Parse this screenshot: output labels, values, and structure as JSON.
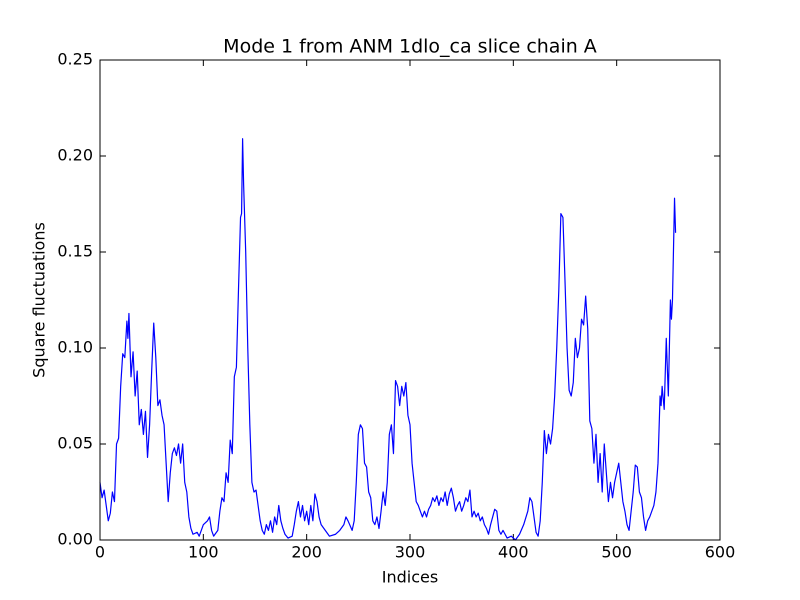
{
  "chart_data": {
    "type": "line",
    "title": "Mode 1 from ANM 1dlo_ca slice chain A",
    "xlabel": "Indices",
    "ylabel": "Square fluctuations",
    "xlim": [
      0,
      600
    ],
    "xticks": [
      0,
      100,
      200,
      300,
      400,
      500,
      600
    ],
    "ylim": [
      0,
      0.25
    ],
    "yticks": [
      {
        "value": 0,
        "label": "0.00"
      },
      {
        "value": 0.05,
        "label": "0.05"
      },
      {
        "value": 0.1,
        "label": "0.10"
      },
      {
        "value": 0.15,
        "label": "0.15"
      },
      {
        "value": 0.2,
        "label": "0.20"
      },
      {
        "value": 0.25,
        "label": "0.25"
      }
    ],
    "grid": false,
    "series": [
      {
        "color": "#0000ff",
        "x": [
          0,
          2,
          4,
          6,
          8,
          10,
          12,
          14,
          16,
          18,
          20,
          22,
          24,
          26,
          27,
          28,
          30,
          32,
          34,
          36,
          38,
          40,
          42,
          44,
          46,
          48,
          50,
          52,
          54,
          56,
          58,
          60,
          62,
          64,
          66,
          68,
          70,
          72,
          74,
          76,
          78,
          80,
          82,
          84,
          86,
          88,
          90,
          94,
          96,
          100,
          104,
          106,
          108,
          110,
          114,
          116,
          118,
          120,
          122,
          124,
          126,
          128,
          130,
          132,
          134,
          136,
          137,
          138,
          139,
          141,
          143,
          145,
          147,
          149,
          151,
          153,
          155,
          157,
          159,
          161,
          163,
          165,
          167,
          169,
          171,
          173,
          175,
          177,
          179,
          182,
          186,
          188,
          190,
          192,
          194,
          196,
          198,
          200,
          202,
          204,
          206,
          208,
          210,
          212,
          214,
          218,
          222,
          228,
          232,
          236,
          238,
          240,
          244,
          246,
          248,
          250,
          252,
          254,
          256,
          258,
          260,
          262,
          264,
          266,
          268,
          270,
          272,
          274,
          276,
          278,
          280,
          282,
          284,
          286,
          288,
          290,
          292,
          294,
          296,
          298,
          300,
          302,
          304,
          306,
          308,
          310,
          312,
          314,
          316,
          318,
          320,
          322,
          324,
          326,
          328,
          330,
          332,
          334,
          336,
          338,
          340,
          342,
          344,
          346,
          348,
          350,
          352,
          354,
          356,
          358,
          360,
          362,
          364,
          366,
          368,
          370,
          372,
          374,
          376,
          378,
          380,
          382,
          384,
          386,
          388,
          390,
          394,
          398,
          402,
          406,
          410,
          414,
          416,
          418,
          420,
          422,
          424,
          426,
          428,
          430,
          432,
          434,
          436,
          438,
          440,
          442,
          444,
          446,
          448,
          450,
          452,
          454,
          456,
          458,
          460,
          462,
          464,
          466,
          468,
          470,
          472,
          474,
          476,
          478,
          480,
          482,
          484,
          486,
          488,
          490,
          492,
          494,
          496,
          498,
          500,
          502,
          504,
          506,
          508,
          510,
          512,
          514,
          516,
          518,
          520,
          522,
          524,
          526,
          528,
          530,
          532,
          534,
          536,
          538,
          540,
          542,
          543,
          544,
          546,
          548,
          550,
          552,
          553,
          554,
          556,
          557
        ],
        "values": [
          0.03,
          0.022,
          0.026,
          0.018,
          0.01,
          0.014,
          0.025,
          0.02,
          0.05,
          0.053,
          0.08,
          0.097,
          0.095,
          0.114,
          0.105,
          0.118,
          0.085,
          0.098,
          0.075,
          0.088,
          0.06,
          0.068,
          0.055,
          0.067,
          0.043,
          0.06,
          0.088,
          0.113,
          0.095,
          0.07,
          0.073,
          0.065,
          0.06,
          0.04,
          0.02,
          0.035,
          0.045,
          0.048,
          0.044,
          0.05,
          0.04,
          0.05,
          0.03,
          0.025,
          0.012,
          0.006,
          0.003,
          0.004,
          0.002,
          0.008,
          0.01,
          0.012,
          0.005,
          0.002,
          0.005,
          0.015,
          0.022,
          0.02,
          0.035,
          0.03,
          0.052,
          0.045,
          0.085,
          0.09,
          0.13,
          0.168,
          0.17,
          0.209,
          0.185,
          0.15,
          0.1,
          0.06,
          0.03,
          0.025,
          0.026,
          0.018,
          0.01,
          0.005,
          0.003,
          0.008,
          0.005,
          0.01,
          0.004,
          0.012,
          0.008,
          0.018,
          0.01,
          0.006,
          0.003,
          0.001,
          0.002,
          0.008,
          0.015,
          0.02,
          0.012,
          0.018,
          0.01,
          0.015,
          0.008,
          0.018,
          0.01,
          0.024,
          0.02,
          0.012,
          0.008,
          0.005,
          0.002,
          0.003,
          0.005,
          0.008,
          0.012,
          0.01,
          0.005,
          0.01,
          0.03,
          0.055,
          0.06,
          0.058,
          0.04,
          0.038,
          0.025,
          0.022,
          0.01,
          0.008,
          0.012,
          0.006,
          0.015,
          0.025,
          0.018,
          0.03,
          0.055,
          0.06,
          0.045,
          0.083,
          0.08,
          0.07,
          0.08,
          0.075,
          0.082,
          0.065,
          0.06,
          0.04,
          0.03,
          0.02,
          0.018,
          0.015,
          0.012,
          0.015,
          0.012,
          0.016,
          0.018,
          0.022,
          0.02,
          0.023,
          0.018,
          0.022,
          0.02,
          0.025,
          0.018,
          0.024,
          0.027,
          0.022,
          0.015,
          0.018,
          0.02,
          0.015,
          0.018,
          0.022,
          0.02,
          0.026,
          0.012,
          0.015,
          0.012,
          0.014,
          0.01,
          0.012,
          0.008,
          0.006,
          0.003,
          0.008,
          0.012,
          0.016,
          0.015,
          0.005,
          0.003,
          0.005,
          0.001,
          0.002,
          0,
          0.003,
          0.008,
          0.015,
          0.022,
          0.02,
          0.012,
          0.004,
          0.002,
          0.01,
          0.03,
          0.057,
          0.045,
          0.055,
          0.05,
          0.058,
          0.075,
          0.1,
          0.13,
          0.17,
          0.168,
          0.135,
          0.1,
          0.078,
          0.075,
          0.082,
          0.105,
          0.095,
          0.1,
          0.115,
          0.112,
          0.127,
          0.11,
          0.062,
          0.058,
          0.04,
          0.055,
          0.03,
          0.045,
          0.025,
          0.05,
          0.035,
          0.02,
          0.03,
          0.022,
          0.03,
          0.035,
          0.04,
          0.03,
          0.02,
          0.015,
          0.008,
          0.005,
          0.015,
          0.025,
          0.039,
          0.038,
          0.025,
          0.022,
          0.012,
          0.005,
          0.01,
          0.012,
          0.015,
          0.018,
          0.025,
          0.04,
          0.075,
          0.07,
          0.08,
          0.068,
          0.105,
          0.075,
          0.125,
          0.115,
          0.125,
          0.178,
          0.16
        ]
      }
    ]
  }
}
